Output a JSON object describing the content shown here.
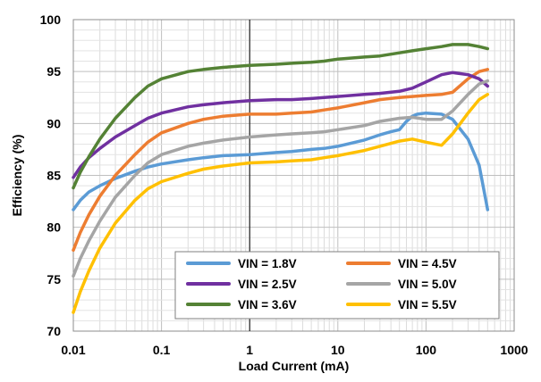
{
  "chart_data": {
    "type": "line",
    "xlabel": "Load Current (mA)",
    "ylabel": "Efficiency (%)",
    "x_scale": "log",
    "xlim": [
      0.01,
      1000
    ],
    "ylim": [
      70,
      100
    ],
    "x_ticks": [
      "0.01",
      "0.1",
      "1",
      "10",
      "100",
      "1000"
    ],
    "y_ticks": [
      "70",
      "75",
      "80",
      "85",
      "90",
      "95",
      "100"
    ],
    "grid": true,
    "legend_position": "bottom-right",
    "series": [
      {
        "name": "VIN = 1.8V",
        "color": "#5b9bd5",
        "points": [
          [
            0.01,
            81.7
          ],
          [
            0.012,
            82.6
          ],
          [
            0.015,
            83.4
          ],
          [
            0.02,
            84.0
          ],
          [
            0.03,
            84.7
          ],
          [
            0.05,
            85.4
          ],
          [
            0.07,
            85.8
          ],
          [
            0.1,
            86.1
          ],
          [
            0.2,
            86.5
          ],
          [
            0.3,
            86.7
          ],
          [
            0.5,
            86.9
          ],
          [
            1,
            87.0
          ],
          [
            2,
            87.2
          ],
          [
            3,
            87.3
          ],
          [
            5,
            87.5
          ],
          [
            7,
            87.6
          ],
          [
            10,
            87.8
          ],
          [
            20,
            88.4
          ],
          [
            30,
            88.9
          ],
          [
            40,
            89.2
          ],
          [
            50,
            89.4
          ],
          [
            60,
            90.2
          ],
          [
            70,
            90.7
          ],
          [
            80,
            90.9
          ],
          [
            100,
            91.0
          ],
          [
            150,
            90.9
          ],
          [
            200,
            90.4
          ],
          [
            300,
            88.5
          ],
          [
            400,
            86.0
          ],
          [
            500,
            81.7
          ]
        ]
      },
      {
        "name": "VIN = 4.5V",
        "color": "#ed7d31",
        "points": [
          [
            0.01,
            77.8
          ],
          [
            0.012,
            79.5
          ],
          [
            0.015,
            81.2
          ],
          [
            0.02,
            83.0
          ],
          [
            0.03,
            85.0
          ],
          [
            0.05,
            87.0
          ],
          [
            0.07,
            88.2
          ],
          [
            0.1,
            89.1
          ],
          [
            0.2,
            90.0
          ],
          [
            0.3,
            90.4
          ],
          [
            0.5,
            90.7
          ],
          [
            1,
            90.9
          ],
          [
            2,
            90.9
          ],
          [
            3,
            91.0
          ],
          [
            5,
            91.1
          ],
          [
            7,
            91.3
          ],
          [
            10,
            91.5
          ],
          [
            20,
            92.0
          ],
          [
            30,
            92.3
          ],
          [
            50,
            92.5
          ],
          [
            70,
            92.6
          ],
          [
            100,
            92.7
          ],
          [
            150,
            92.8
          ],
          [
            200,
            93.0
          ],
          [
            300,
            94.3
          ],
          [
            400,
            95.0
          ],
          [
            500,
            95.2
          ]
        ]
      },
      {
        "name": "VIN = 2.5V",
        "color": "#7030a0",
        "points": [
          [
            0.01,
            84.8
          ],
          [
            0.012,
            85.8
          ],
          [
            0.015,
            86.7
          ],
          [
            0.02,
            87.6
          ],
          [
            0.03,
            88.7
          ],
          [
            0.05,
            89.8
          ],
          [
            0.07,
            90.5
          ],
          [
            0.1,
            91.0
          ],
          [
            0.2,
            91.6
          ],
          [
            0.3,
            91.8
          ],
          [
            0.5,
            92.0
          ],
          [
            1,
            92.2
          ],
          [
            2,
            92.3
          ],
          [
            3,
            92.3
          ],
          [
            5,
            92.4
          ],
          [
            7,
            92.5
          ],
          [
            10,
            92.6
          ],
          [
            20,
            92.8
          ],
          [
            30,
            92.9
          ],
          [
            50,
            93.1
          ],
          [
            70,
            93.4
          ],
          [
            100,
            94.0
          ],
          [
            150,
            94.7
          ],
          [
            200,
            94.9
          ],
          [
            300,
            94.7
          ],
          [
            400,
            94.3
          ],
          [
            500,
            93.6
          ]
        ]
      },
      {
        "name": "VIN = 5.0V",
        "color": "#a5a5a5",
        "points": [
          [
            0.01,
            75.3
          ],
          [
            0.012,
            77.0
          ],
          [
            0.015,
            78.7
          ],
          [
            0.02,
            80.6
          ],
          [
            0.03,
            82.9
          ],
          [
            0.05,
            85.0
          ],
          [
            0.07,
            86.2
          ],
          [
            0.1,
            87.0
          ],
          [
            0.2,
            87.8
          ],
          [
            0.3,
            88.1
          ],
          [
            0.5,
            88.4
          ],
          [
            1,
            88.7
          ],
          [
            2,
            88.9
          ],
          [
            3,
            89.0
          ],
          [
            5,
            89.1
          ],
          [
            7,
            89.2
          ],
          [
            10,
            89.4
          ],
          [
            20,
            89.8
          ],
          [
            30,
            90.2
          ],
          [
            50,
            90.5
          ],
          [
            70,
            90.6
          ],
          [
            100,
            90.4
          ],
          [
            150,
            90.4
          ],
          [
            200,
            91.2
          ],
          [
            300,
            92.8
          ],
          [
            400,
            93.8
          ],
          [
            500,
            94.1
          ]
        ]
      },
      {
        "name": "VIN = 3.6V",
        "color": "#548235",
        "points": [
          [
            0.01,
            83.8
          ],
          [
            0.012,
            85.3
          ],
          [
            0.015,
            86.8
          ],
          [
            0.02,
            88.5
          ],
          [
            0.03,
            90.5
          ],
          [
            0.05,
            92.5
          ],
          [
            0.07,
            93.6
          ],
          [
            0.1,
            94.3
          ],
          [
            0.2,
            95.0
          ],
          [
            0.3,
            95.2
          ],
          [
            0.5,
            95.4
          ],
          [
            1,
            95.6
          ],
          [
            2,
            95.7
          ],
          [
            3,
            95.8
          ],
          [
            5,
            95.9
          ],
          [
            7,
            96.0
          ],
          [
            10,
            96.2
          ],
          [
            20,
            96.4
          ],
          [
            30,
            96.5
          ],
          [
            50,
            96.8
          ],
          [
            70,
            97.0
          ],
          [
            100,
            97.2
          ],
          [
            150,
            97.4
          ],
          [
            200,
            97.6
          ],
          [
            300,
            97.6
          ],
          [
            400,
            97.4
          ],
          [
            500,
            97.2
          ]
        ]
      },
      {
        "name": "VIN = 5.5V",
        "color": "#ffc000",
        "points": [
          [
            0.01,
            71.8
          ],
          [
            0.012,
            73.8
          ],
          [
            0.015,
            75.8
          ],
          [
            0.02,
            78.0
          ],
          [
            0.03,
            80.4
          ],
          [
            0.05,
            82.6
          ],
          [
            0.07,
            83.7
          ],
          [
            0.1,
            84.4
          ],
          [
            0.2,
            85.2
          ],
          [
            0.3,
            85.6
          ],
          [
            0.5,
            85.9
          ],
          [
            1,
            86.2
          ],
          [
            2,
            86.3
          ],
          [
            3,
            86.4
          ],
          [
            5,
            86.5
          ],
          [
            7,
            86.7
          ],
          [
            10,
            86.9
          ],
          [
            20,
            87.4
          ],
          [
            30,
            87.8
          ],
          [
            50,
            88.3
          ],
          [
            70,
            88.5
          ],
          [
            100,
            88.2
          ],
          [
            150,
            87.9
          ],
          [
            200,
            89.0
          ],
          [
            300,
            91.0
          ],
          [
            400,
            92.3
          ],
          [
            500,
            92.8
          ]
        ]
      }
    ]
  }
}
